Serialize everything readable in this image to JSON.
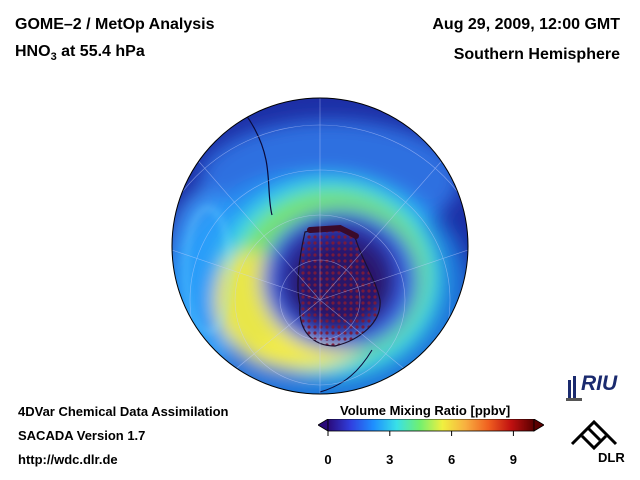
{
  "header": {
    "title_line1": "GOME–2 / MetOp Analysis",
    "species_main": "HNO",
    "species_sub": "3",
    "species_rest": " at 55.4 hPa",
    "datetime": "Aug 29, 2009, 12:00 GMT",
    "region": "Southern Hemisphere"
  },
  "footer": {
    "line1": "4DVar Chemical Data Assimilation",
    "line2": "SACADA Version 1.7",
    "line3": "http://wdc.dlr.de"
  },
  "colorbar": {
    "title": "Volume Mixing Ratio [ppbv]",
    "ticks": [
      "0",
      "3",
      "6",
      "9"
    ],
    "tick_values": [
      0,
      3,
      6,
      9
    ],
    "range": [
      0,
      10
    ],
    "colors": [
      "#2a0a7a",
      "#3040e0",
      "#1e90ff",
      "#38e0e8",
      "#70f070",
      "#f0f040",
      "#f8b040",
      "#f06020",
      "#c01010",
      "#5a0000"
    ]
  },
  "logos": {
    "riu": "RIU",
    "dlr": "DLR"
  },
  "map": {
    "projection": "orthographic south polar",
    "field": "HNO3",
    "colors": {
      "background": "#1d2fa6",
      "vortex_core": "#2a1968",
      "pole_cap": "#4a1a3a",
      "collar": "#8de060",
      "collar_peak": "#f2ec4a",
      "outer": "#3aa6ff"
    }
  }
}
